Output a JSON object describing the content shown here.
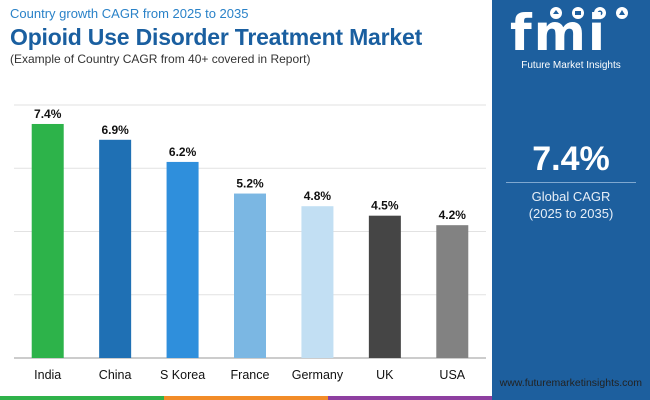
{
  "header": {
    "top_subtitle": "Country growth CAGR from 2025 to 2035",
    "title": "Opioid Use Disorder Treatment Market",
    "bottom_subtitle": "(Example of Country CAGR from 40+ covered in Report)"
  },
  "sidebar": {
    "logo_text": "fmi",
    "logo_caption": "Future Market Insights",
    "global_value": "7.4%",
    "global_label_line1": "Global CAGR",
    "global_label_line2": "(2025 to 2035)",
    "background_color": "#1d5f9e"
  },
  "footer": {
    "website": "www.futuremarketinsights.com",
    "stripe_colors": [
      "#2fb24a",
      "#f28c28",
      "#8e3fa0"
    ]
  },
  "chart_data": {
    "type": "bar",
    "title": "Opioid Use Disorder Treatment Market",
    "categories": [
      "India",
      "China",
      "S Korea",
      "France",
      "Germany",
      "UK",
      "USA"
    ],
    "values": [
      7.4,
      6.9,
      6.2,
      5.2,
      4.8,
      4.5,
      4.2
    ],
    "labels": [
      "7.4%",
      "6.9%",
      "6.2%",
      "5.2%",
      "4.8%",
      "4.5%",
      "4.2%"
    ],
    "colors": [
      "#2db34a",
      "#1f70b4",
      "#2f8fdc",
      "#7bb7e3",
      "#c2dff3",
      "#454545",
      "#828282"
    ],
    "ylim": [
      0,
      8
    ],
    "grid": true,
    "xlabel": "",
    "ylabel": ""
  }
}
